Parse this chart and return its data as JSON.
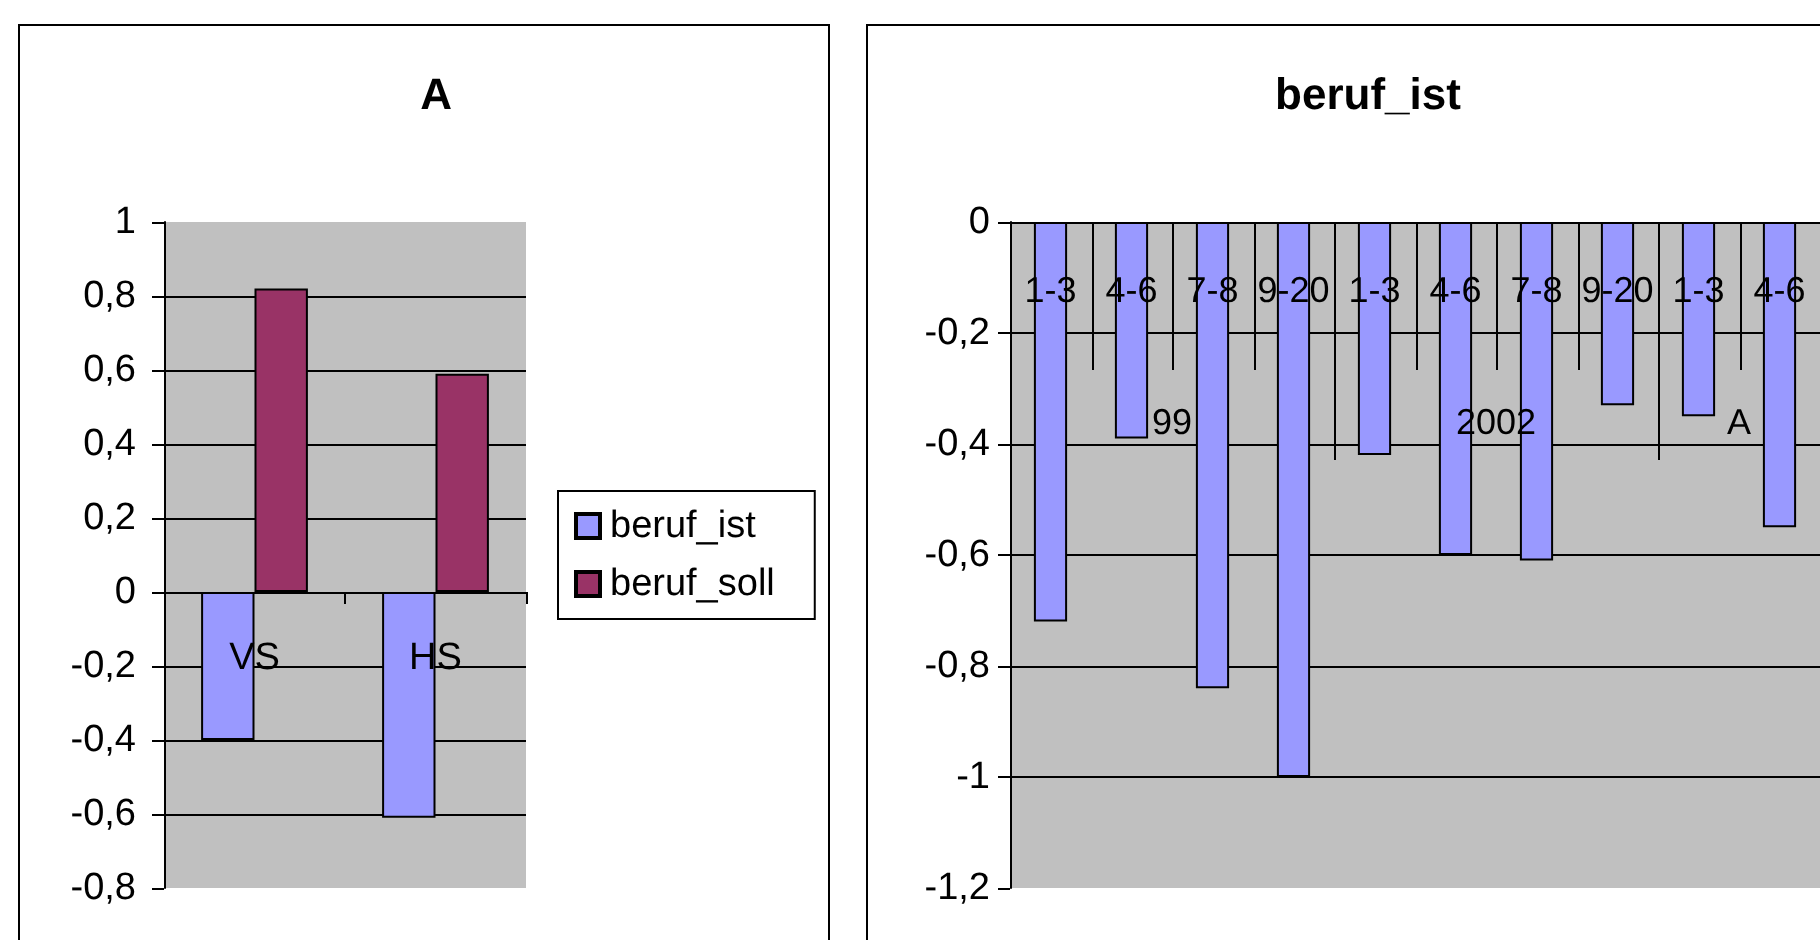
{
  "chart_data": [
    {
      "type": "bar",
      "title": "A",
      "categories": [
        "VS",
        "HS"
      ],
      "series": [
        {
          "name": "beruf_ist",
          "color": "#9999ff",
          "values": [
            -0.4,
            -0.61
          ]
        },
        {
          "name": "beruf_soll",
          "color": "#993366",
          "values": [
            0.82,
            0.59
          ]
        }
      ],
      "ylim": [
        -0.8,
        1
      ],
      "yticks": [
        {
          "value": -0.8,
          "label": "-0,8"
        },
        {
          "value": -0.6,
          "label": "-0,6"
        },
        {
          "value": -0.4,
          "label": "-0,4"
        },
        {
          "value": -0.2,
          "label": "-0,2"
        },
        0,
        {
          "value": 0.2,
          "label": "0,2"
        },
        {
          "value": 0.4,
          "label": "0,4"
        },
        {
          "value": 0.6,
          "label": "0,6"
        },
        {
          "value": 0.8,
          "label": "0,8"
        },
        1
      ],
      "grid": "y",
      "legend": "right"
    },
    {
      "type": "bar",
      "title": "beruf_ist",
      "categories": [
        "1-3",
        "4-6",
        "7-8",
        "9-20",
        "1-3",
        "4-6",
        "7-8",
        "9-20",
        "1-3",
        "4-6"
      ],
      "values": [
        -0.72,
        -0.39,
        -0.84,
        -1,
        -0.42,
        -0.6,
        -0.61,
        -0.33,
        -0.35,
        -0.55
      ],
      "color": "#9999ff",
      "ylim": [
        -1.2,
        0
      ],
      "yticks": [
        {
          "value": -1.2,
          "label": "-1,2"
        },
        -1,
        {
          "value": -0.8,
          "label": "-0,8"
        },
        {
          "value": -0.6,
          "label": "-0,6"
        },
        {
          "value": -0.4,
          "label": "-0,4"
        },
        {
          "value": -0.2,
          "label": "-0,2"
        },
        0
      ],
      "grid": "y",
      "annotations": [
        "99",
        "2002",
        "A"
      ]
    }
  ]
}
